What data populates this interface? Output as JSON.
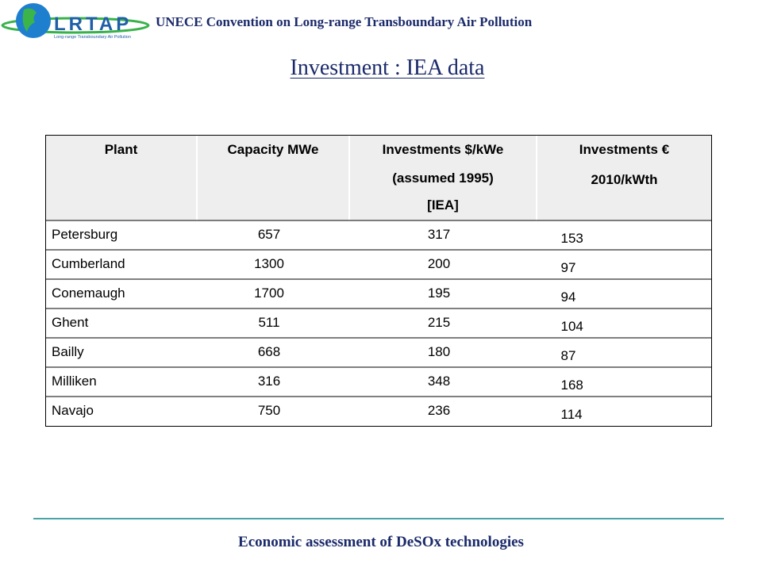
{
  "header": {
    "logo_text": "LRTAP",
    "logo_subtext": "Long-range Transboundary Air Pollution",
    "title": "UNECE Convention on Long-range Transboundary Air Pollution"
  },
  "slide_title": "Investment : IEA data",
  "table": {
    "columns": [
      [
        "Plant"
      ],
      [
        "Capacity MWe"
      ],
      [
        "Investments $/kWe",
        "(assumed 1995)",
        "[IEA]"
      ],
      [
        "Investments €",
        "2010/kWth"
      ]
    ],
    "rows": [
      [
        "Petersburg",
        657,
        317,
        153
      ],
      [
        "Cumberland",
        1300,
        200,
        97
      ],
      [
        "Conemaugh",
        1700,
        195,
        94
      ],
      [
        "Ghent",
        511,
        215,
        104
      ],
      [
        "Bailly",
        668,
        180,
        87
      ],
      [
        "Milliken",
        316,
        348,
        168
      ],
      [
        "Navajo",
        750,
        236,
        114
      ]
    ]
  },
  "footer": "Economic assessment of DeSOx technologies"
}
